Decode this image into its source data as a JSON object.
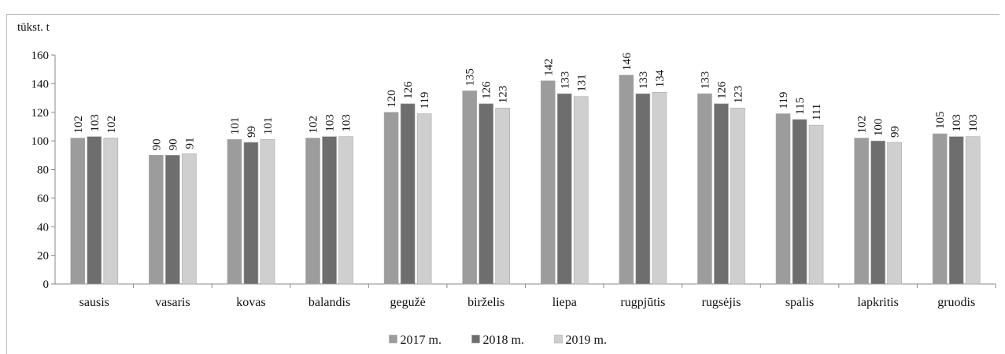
{
  "chart_data": {
    "type": "bar",
    "title": "",
    "ylabel": "tūkst. t",
    "xlabel": "",
    "ylim": [
      0,
      160
    ],
    "yticks": [
      0,
      20,
      40,
      60,
      80,
      100,
      120,
      140,
      160
    ],
    "grid": false,
    "legend_position": "bottom",
    "categories": [
      "sausis",
      "vasaris",
      "kovas",
      "balandis",
      "gegužė",
      "birželis",
      "liepa",
      "rugpjūtis",
      "rugsėjis",
      "spalis",
      "lapkritis",
      "gruodis"
    ],
    "series": [
      {
        "name": "2017 m.",
        "color": "#9c9c9c",
        "values": [
          102,
          90,
          101,
          102,
          120,
          135,
          142,
          146,
          133,
          119,
          102,
          105
        ]
      },
      {
        "name": "2018 m.",
        "color": "#6e6e6e",
        "values": [
          103,
          90,
          99,
          103,
          126,
          126,
          133,
          133,
          126,
          115,
          100,
          103
        ]
      },
      {
        "name": "2019 m.",
        "color": "#cfcfcf",
        "values": [
          102,
          91,
          101,
          103,
          119,
          123,
          131,
          134,
          123,
          111,
          99,
          103
        ]
      }
    ]
  }
}
